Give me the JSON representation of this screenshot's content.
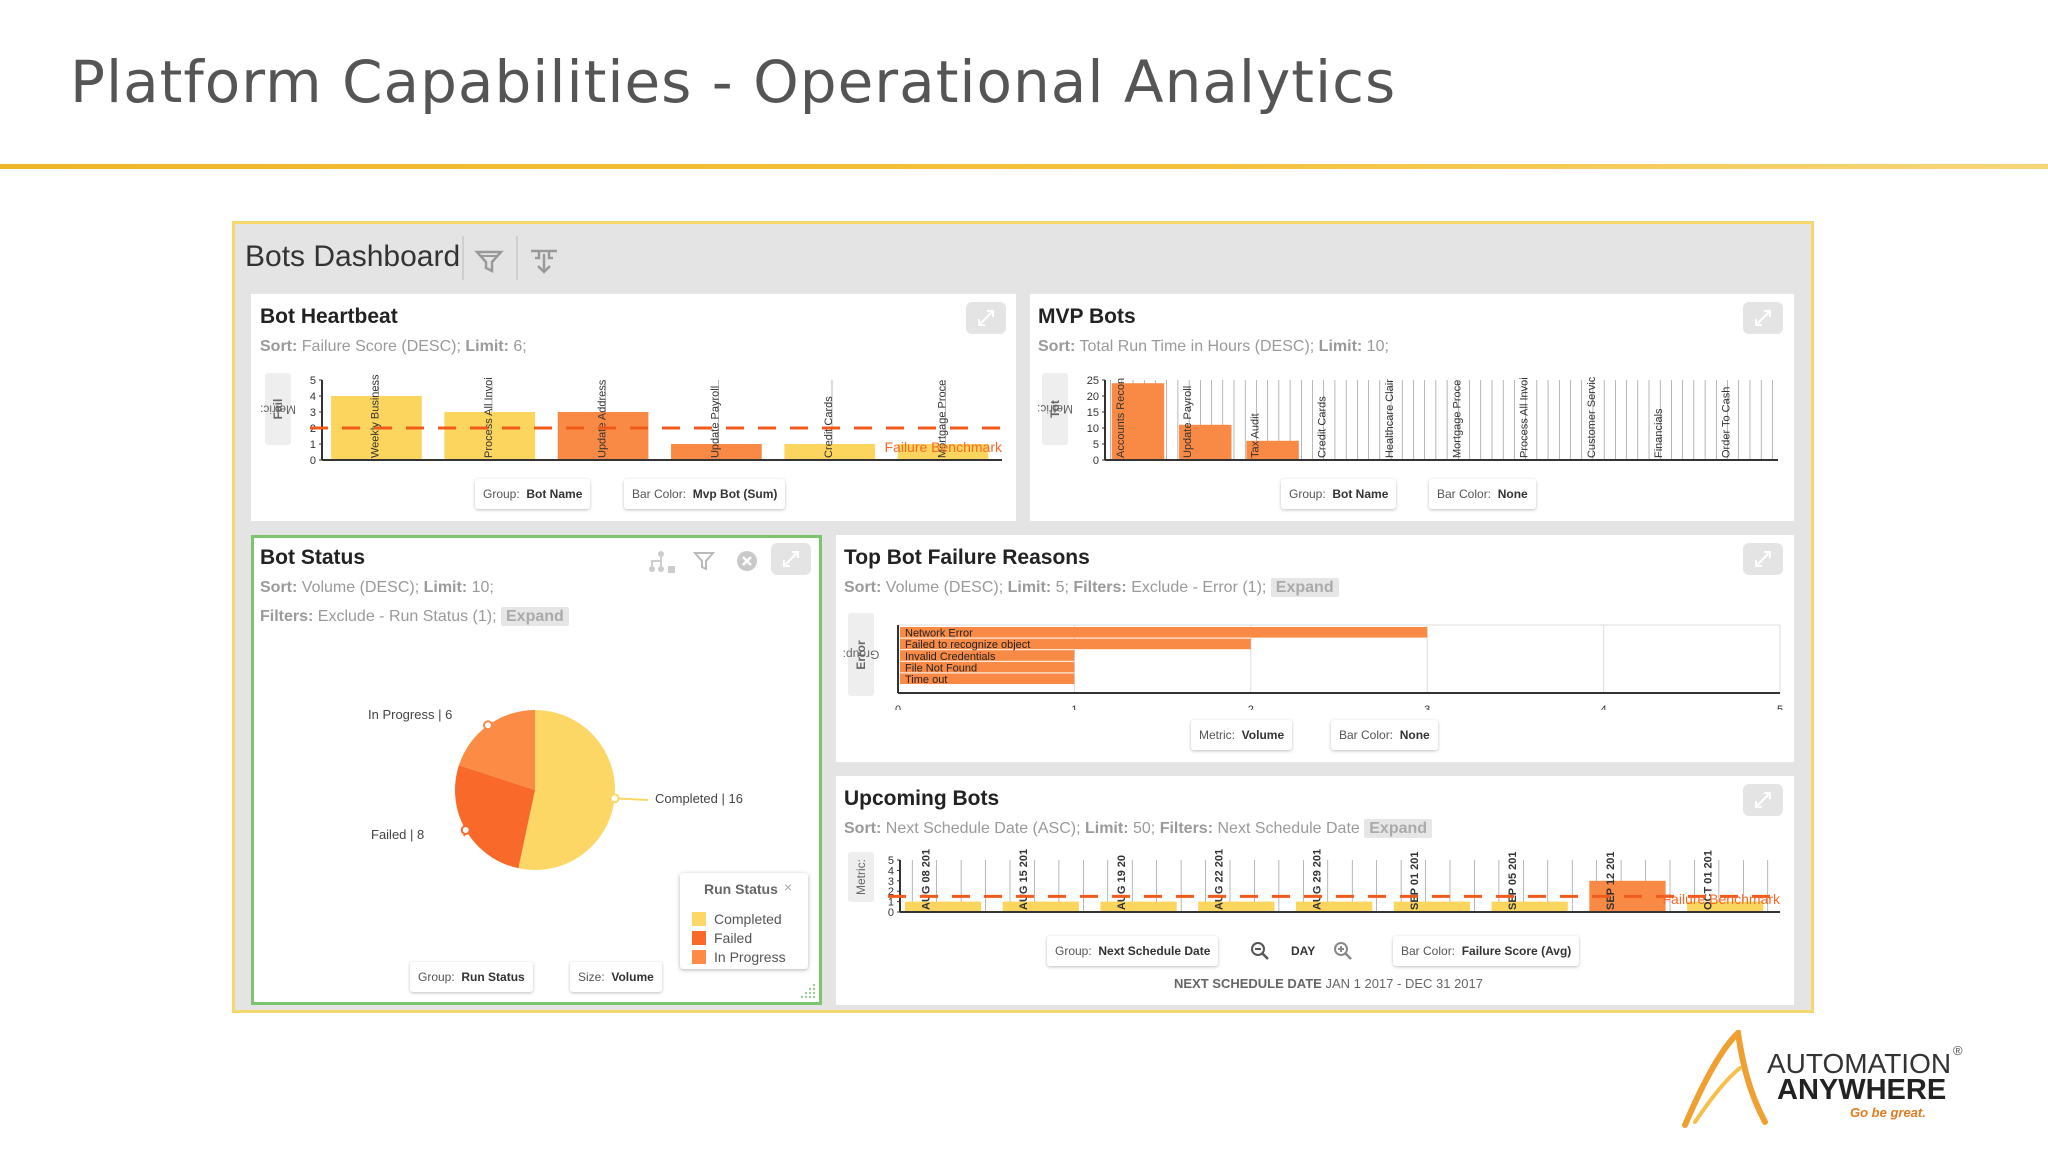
{
  "slide": {
    "title": "Platform Capabilities - Operational Analytics"
  },
  "dashboard": {
    "title": "Bots Dashboard"
  },
  "panels": {
    "heartbeat": {
      "title": "Bot Heartbeat",
      "sort_label": "Sort:",
      "sort_value": "Failure Score (DESC);",
      "limit_label": "Limit:",
      "limit_value": "6;",
      "metric_label": "Metric:",
      "metric_value": "Fail",
      "group_label": "Group:",
      "group_value": "Bot Name",
      "color_label": "Bar Color:",
      "color_value": "Mvp Bot (Sum)",
      "benchmark_label": "Failure Benchmark"
    },
    "mvp": {
      "title": "MVP Bots",
      "sort_label": "Sort:",
      "sort_value": "Total Run Time in Hours (DESC);",
      "limit_label": "Limit:",
      "limit_value": "10;",
      "metric_label": "Metric:",
      "metric_value": "Tot",
      "group_label": "Group:",
      "group_value": "Bot Name",
      "color_label": "Bar Color:",
      "color_value": "None"
    },
    "status": {
      "title": "Bot Status",
      "sort_label": "Sort:",
      "sort_value": "Volume (DESC);",
      "limit_label": "Limit:",
      "limit_value": "10;",
      "filters_label": "Filters:",
      "filters_value": "Exclude - Run Status (1);",
      "expand": "Expand",
      "group_label": "Group:",
      "group_value": "Run Status",
      "size_label": "Size:",
      "size_value": "Volume",
      "legend_title": "Run Status",
      "legend_close": "×"
    },
    "failure": {
      "title": "Top Bot Failure Reasons",
      "sort_label": "Sort:",
      "sort_value": "Volume (DESC);",
      "limit_label": "Limit:",
      "limit_value": "5;",
      "filters_label": "Filters:",
      "filters_value": "Exclude - Error (1);",
      "expand": "Expand",
      "group_tab_label": "Group:",
      "group_tab_value": "Error",
      "metric_label": "Metric:",
      "metric_value": "Volume",
      "color_label": "Bar Color:",
      "color_value": "None"
    },
    "upcoming": {
      "title": "Upcoming Bots",
      "sort_label": "Sort:",
      "sort_value": "Next Schedule Date (ASC);",
      "limit_label": "Limit:",
      "limit_value": "50;",
      "filters_label": "Filters:",
      "filters_value": "Next Schedule Date",
      "expand": "Expand",
      "metric_label": "Metric:",
      "group_label": "Group:",
      "group_value": "Next Schedule Date",
      "zoom_unit": "DAY",
      "color_label": "Bar Color:",
      "color_value": "Failure Score (Avg)",
      "footer_label": "NEXT SCHEDULE DATE",
      "footer_range": "JAN 1 2017 - DEC 31 2017",
      "benchmark_label": "Failure Benchmark"
    }
  },
  "logo": {
    "line1": "AUTOMATION",
    "line2": "ANYWHERE",
    "tagline": "Go be great.",
    "reg": "®"
  },
  "chart_data": [
    {
      "type": "bar",
      "id": "heartbeat",
      "categories": [
        "Weekly Business",
        "Process All Invoi",
        "Update Address",
        "Update Payroll",
        "Credit Cards",
        "Mortgage Proce"
      ],
      "values": [
        4,
        3,
        3,
        1,
        1,
        1
      ],
      "colors": [
        "#fbd55e",
        "#fbd55e",
        "#f98a45",
        "#f98a45",
        "#fbd55e",
        "#fbd55e"
      ],
      "ylim": [
        0,
        5
      ],
      "yticks": [
        0,
        1,
        2,
        3,
        4,
        5
      ],
      "benchmark": 2,
      "ylabel": "Fail"
    },
    {
      "type": "bar",
      "id": "mvp",
      "categories": [
        "Accounts Recon",
        "Update Payroll",
        "Tax Audit",
        "Credit Cards",
        "Healthcare Clair",
        "Mortgage Proce",
        "Process All Invoi",
        "Customer Servic",
        "Financials",
        "Order To Cash"
      ],
      "values": [
        24,
        11,
        6,
        0,
        0,
        0,
        0,
        0,
        0,
        0
      ],
      "ylim": [
        0,
        25
      ],
      "yticks": [
        0,
        5,
        10,
        15,
        20,
        25
      ],
      "ylabel": "Tot"
    },
    {
      "type": "pie",
      "id": "status",
      "slices": [
        {
          "label": "Completed",
          "value": 16,
          "color": "#fcd765",
          "text": "Completed | 16"
        },
        {
          "label": "Failed",
          "value": 8,
          "color": "#f96a2a",
          "text": "Failed | 8"
        },
        {
          "label": "In Progress",
          "value": 6,
          "color": "#fb8b45",
          "text": "In Progress | 6"
        }
      ]
    },
    {
      "type": "bar",
      "orientation": "horizontal",
      "id": "failure",
      "categories": [
        "Network Error",
        "Failed to recognize object",
        "Invalid Credentials",
        "File Not Found",
        "Time out"
      ],
      "values": [
        3,
        2,
        1,
        1,
        1
      ],
      "xlim": [
        0,
        5
      ],
      "xticks": [
        0,
        1,
        2,
        3,
        4,
        5
      ]
    },
    {
      "type": "bar",
      "id": "upcoming",
      "categories": [
        "AUG 08 201",
        "AUG 15 201",
        "AUG 19 20",
        "AUG 22 201",
        "AUG 29 201",
        "SEP 01 201",
        "SEP 05 201",
        "SEP 12 201",
        "OCT 01 201"
      ],
      "values": [
        1,
        1,
        1,
        1,
        1,
        1,
        1,
        3,
        1
      ],
      "colors": [
        "#fbd55e",
        "#fbd55e",
        "#fbd55e",
        "#fbd55e",
        "#fbd55e",
        "#fbd55e",
        "#fbd55e",
        "#f98a45",
        "#fbd55e"
      ],
      "ylim": [
        0,
        5
      ],
      "yticks": [
        0,
        1,
        2,
        3,
        4,
        5
      ],
      "benchmark": 1.5
    }
  ]
}
